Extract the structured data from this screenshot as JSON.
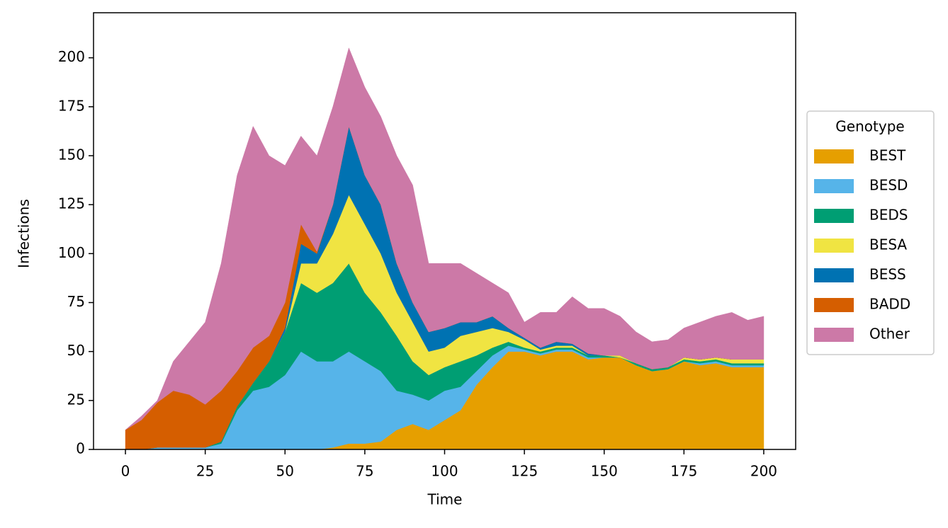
{
  "chart_data": {
    "type": "stacked_area",
    "x_label": "Time",
    "y_label": "Infections",
    "x": [
      0,
      5,
      10,
      15,
      20,
      25,
      30,
      35,
      40,
      45,
      50,
      55,
      60,
      65,
      70,
      75,
      80,
      85,
      90,
      95,
      100,
      105,
      110,
      115,
      120,
      125,
      130,
      135,
      140,
      145,
      150,
      155,
      160,
      165,
      170,
      175,
      180,
      185,
      190,
      195,
      200
    ],
    "series": [
      {
        "name": "BEST",
        "color": "#e69f00",
        "values": [
          0,
          0,
          0,
          0,
          0,
          0,
          0,
          0,
          0,
          0,
          0,
          0,
          0,
          1,
          3,
          3,
          4,
          10,
          13,
          10,
          15,
          20,
          33,
          42,
          50,
          50,
          48,
          50,
          50,
          46,
          47,
          47,
          43,
          40,
          41,
          45,
          43,
          44,
          42,
          42,
          42
        ]
      },
      {
        "name": "BESD",
        "color": "#56b4e9",
        "values": [
          0,
          0,
          1,
          1,
          1,
          1,
          3,
          20,
          30,
          32,
          38,
          50,
          45,
          44,
          47,
          42,
          36,
          20,
          15,
          15,
          15,
          12,
          7,
          6,
          3,
          1,
          1,
          1,
          1,
          1,
          0,
          0,
          0,
          0,
          0,
          0,
          1,
          1,
          1,
          1,
          1
        ]
      },
      {
        "name": "BEDS",
        "color": "#009e73",
        "values": [
          0,
          0,
          0,
          0,
          0,
          0,
          1,
          2,
          4,
          13,
          22,
          35,
          35,
          40,
          45,
          35,
          30,
          28,
          17,
          13,
          12,
          13,
          8,
          4,
          2,
          1,
          1,
          1,
          1,
          1,
          1,
          0,
          1,
          1,
          1,
          1,
          1,
          1,
          1,
          1,
          1
        ]
      },
      {
        "name": "BESA",
        "color": "#f0e442",
        "values": [
          0,
          0,
          0,
          0,
          0,
          0,
          0,
          0,
          0,
          0,
          0,
          10,
          15,
          25,
          35,
          35,
          30,
          22,
          20,
          12,
          10,
          13,
          12,
          10,
          5,
          4,
          1,
          1,
          1,
          0,
          0,
          1,
          0,
          0,
          0,
          1,
          1,
          1,
          2,
          2,
          2
        ]
      },
      {
        "name": "BESS",
        "color": "#0072b2",
        "values": [
          0,
          0,
          0,
          0,
          0,
          0,
          0,
          0,
          0,
          0,
          2,
          10,
          5,
          15,
          35,
          25,
          25,
          15,
          10,
          10,
          10,
          7,
          5,
          6,
          2,
          1,
          1,
          2,
          1,
          1,
          0,
          0,
          0,
          0,
          0,
          0,
          0,
          0,
          0,
          0,
          0
        ]
      },
      {
        "name": "BADD",
        "color": "#d55e00",
        "values": [
          10,
          15,
          23,
          29,
          27,
          22,
          26,
          18,
          18,
          13,
          13,
          10,
          1,
          0,
          0,
          0,
          0,
          0,
          0,
          0,
          0,
          0,
          0,
          0,
          0,
          0,
          0,
          0,
          0,
          0,
          0,
          0,
          0,
          0,
          0,
          0,
          0,
          0,
          0,
          0,
          0
        ]
      },
      {
        "name": "Other",
        "color": "#cc79a7",
        "values": [
          0,
          2,
          1,
          15,
          27,
          42,
          65,
          100,
          113,
          92,
          70,
          45,
          49,
          50,
          40,
          45,
          45,
          55,
          60,
          35,
          33,
          30,
          25,
          17,
          18,
          8,
          18,
          15,
          24,
          23,
          24,
          20,
          16,
          14,
          14,
          15,
          19,
          21,
          24,
          20,
          22
        ]
      }
    ],
    "xlim": [
      -10,
      210
    ],
    "ylim": [
      0,
      223
    ],
    "xticks": [
      0,
      25,
      50,
      75,
      100,
      125,
      150,
      175,
      200
    ],
    "yticks": [
      0,
      25,
      50,
      75,
      100,
      125,
      150,
      175,
      200
    ],
    "legend_title": "Genotype",
    "legend_position": "right"
  }
}
